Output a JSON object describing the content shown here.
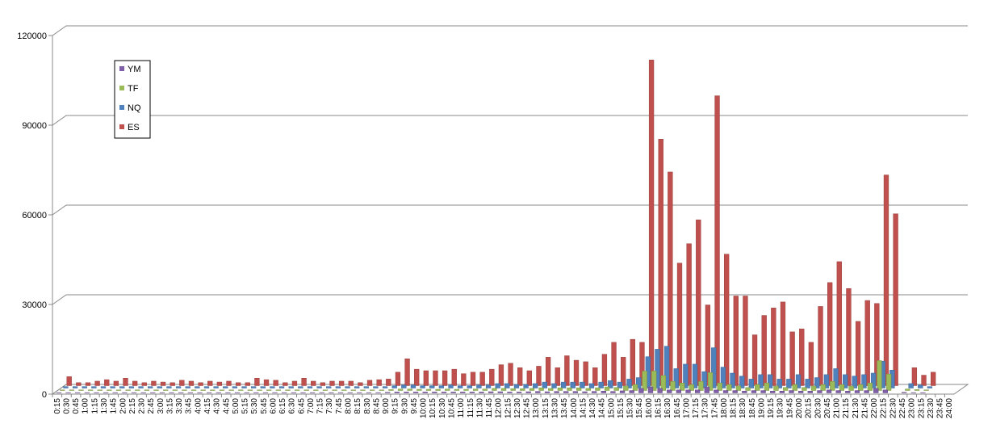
{
  "chart_data": {
    "type": "bar3d",
    "categories": [
      "0:15",
      "0:30",
      "0:45",
      "1:00",
      "1:15",
      "1:30",
      "1:45",
      "2:00",
      "2:15",
      "2:30",
      "2:45",
      "3:00",
      "3:15",
      "3:30",
      "3:45",
      "4:00",
      "4:15",
      "4:30",
      "4:45",
      "5:00",
      "5:15",
      "5:30",
      "5:45",
      "6:00",
      "6:15",
      "6:30",
      "6:45",
      "7:00",
      "7:15",
      "7:30",
      "7:45",
      "8:00",
      "8:15",
      "8:30",
      "8:45",
      "9:00",
      "9:15",
      "9:30",
      "9:45",
      "10:00",
      "10:15",
      "10:30",
      "10:45",
      "11:00",
      "11:15",
      "11:30",
      "11:45",
      "12:00",
      "12:15",
      "12:30",
      "12:45",
      "13:00",
      "13:15",
      "13:30",
      "13:45",
      "14:00",
      "14:15",
      "14:30",
      "14:45",
      "15:00",
      "15:15",
      "15:30",
      "15:45",
      "16:00",
      "16:15",
      "16:30",
      "16:45",
      "17:00",
      "17:15",
      "17:30",
      "17:45",
      "18:00",
      "18:15",
      "18:30",
      "18:45",
      "19:00",
      "19:15",
      "19:30",
      "19:45",
      "20:00",
      "20:15",
      "20:30",
      "20:45",
      "21:00",
      "21:15",
      "21:30",
      "21:45",
      "22:00",
      "22:15",
      "22:30",
      "22:45",
      "23:00",
      "23:15",
      "23:30",
      "23:45",
      "24:00"
    ],
    "series": [
      {
        "name": "YM",
        "color": "#7f5fa8",
        "values": [
          100,
          100,
          100,
          100,
          100,
          100,
          100,
          100,
          100,
          100,
          100,
          100,
          100,
          100,
          100,
          100,
          100,
          100,
          100,
          100,
          100,
          100,
          100,
          100,
          100,
          100,
          100,
          100,
          100,
          100,
          100,
          100,
          100,
          100,
          100,
          200,
          300,
          300,
          300,
          300,
          300,
          300,
          300,
          300,
          300,
          300,
          400,
          400,
          300,
          300,
          400,
          500,
          400,
          500,
          500,
          500,
          400,
          500,
          600,
          500,
          700,
          800,
          1500,
          2000,
          1500,
          1000,
          1000,
          1000,
          1000,
          2000,
          1000,
          800,
          800,
          600,
          800,
          800,
          600,
          600,
          800,
          600,
          600,
          800,
          1000,
          800,
          600,
          800,
          800,
          1500,
          1000,
          0,
          200,
          100,
          100,
          0,
          0,
          0
        ]
      },
      {
        "name": "TF",
        "color": "#9bbb59",
        "values": [
          200,
          200,
          200,
          200,
          200,
          200,
          200,
          200,
          200,
          200,
          200,
          200,
          200,
          200,
          200,
          200,
          200,
          200,
          200,
          200,
          200,
          200,
          200,
          200,
          200,
          200,
          200,
          200,
          200,
          200,
          200,
          200,
          200,
          200,
          200,
          300,
          500,
          500,
          400,
          400,
          400,
          500,
          400,
          400,
          500,
          500,
          700,
          700,
          600,
          600,
          700,
          900,
          700,
          900,
          900,
          900,
          700,
          900,
          1200,
          1000,
          1500,
          2000,
          6500,
          6500,
          5000,
          3000,
          2500,
          2000,
          3000,
          6000,
          2500,
          2000,
          1500,
          1000,
          2000,
          2500,
          1500,
          1000,
          2000,
          1000,
          1500,
          2000,
          3000,
          2000,
          1500,
          2000,
          2500,
          10000,
          5500,
          0,
          500,
          300,
          200,
          0,
          0,
          0
        ]
      },
      {
        "name": "NQ",
        "color": "#4f81bd",
        "values": [
          500,
          500,
          500,
          500,
          500,
          500,
          500,
          500,
          500,
          500,
          500,
          500,
          500,
          500,
          500,
          500,
          500,
          500,
          500,
          500,
          500,
          500,
          500,
          500,
          500,
          500,
          500,
          500,
          500,
          500,
          500,
          500,
          500,
          500,
          500,
          800,
          1000,
          1000,
          800,
          800,
          800,
          1000,
          800,
          800,
          1000,
          1000,
          1500,
          1500,
          1200,
          1200,
          1500,
          2000,
          1500,
          2000,
          2000,
          2000,
          1500,
          2000,
          2500,
          2000,
          3000,
          3500,
          10500,
          13000,
          14000,
          6500,
          8000,
          8000,
          5500,
          13500,
          7000,
          5000,
          4000,
          3000,
          4500,
          4500,
          3000,
          3000,
          4500,
          3000,
          3500,
          4500,
          6500,
          4500,
          4000,
          4500,
          5000,
          9000,
          6000,
          0,
          1500,
          1000,
          500,
          0,
          0,
          0
        ]
      },
      {
        "name": "ES",
        "color": "#c0504d",
        "values": [
          3000,
          1000,
          1000,
          1500,
          2000,
          1500,
          2500,
          1500,
          1000,
          1500,
          1200,
          1000,
          1800,
          1500,
          1000,
          1500,
          1200,
          1500,
          1000,
          1000,
          2500,
          2000,
          1800,
          1000,
          1500,
          2500,
          1500,
          1000,
          1500,
          1500,
          1500,
          1000,
          1800,
          2000,
          2200,
          4500,
          9000,
          5500,
          5000,
          5000,
          5000,
          5500,
          4000,
          4500,
          4500,
          5500,
          7000,
          7500,
          6000,
          5000,
          6500,
          9500,
          6000,
          10000,
          8500,
          8000,
          6000,
          10500,
          14500,
          9500,
          15500,
          14500,
          109000,
          82500,
          71500,
          41000,
          47500,
          55500,
          27000,
          97000,
          44000,
          30000,
          30000,
          17000,
          23500,
          26000,
          28000,
          18000,
          19000,
          14500,
          26500,
          34500,
          41500,
          32500,
          21500,
          28500,
          27500,
          70500,
          57500,
          0,
          6000,
          3500,
          4500,
          0,
          0,
          0
        ]
      }
    ],
    "ylim": [
      0,
      120000
    ],
    "yticks": [
      0,
      30000,
      60000,
      90000,
      120000
    ],
    "grid": true,
    "legend_position": "upper-left"
  }
}
